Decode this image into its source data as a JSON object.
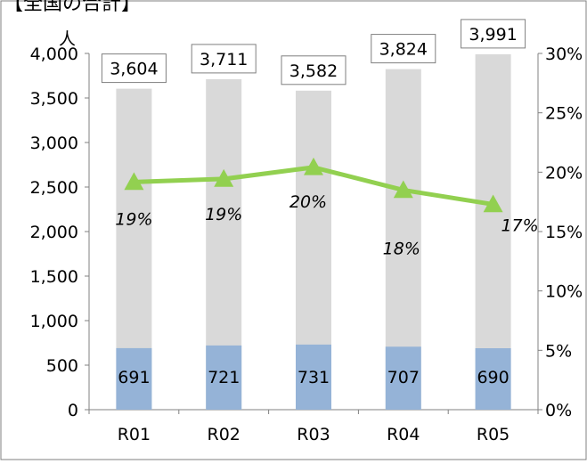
{
  "page_title": "【全国の合計】",
  "chart_data": {
    "type": "bar",
    "categories": [
      "R01",
      "R02",
      "R03",
      "R04",
      "R05"
    ],
    "series": [
      {
        "values": [
          3604,
          3711,
          3582,
          3824,
          3991
        ],
        "color": "#d9d9d9"
      },
      {
        "values": [
          691,
          721,
          731,
          707,
          690
        ],
        "color": "#95b3d7"
      },
      {
        "values": [
          0.19,
          0.19,
          0.2,
          0.18,
          0.17
        ],
        "color": "#92d050",
        "type": "line",
        "axis": "right"
      }
    ],
    "total_labels": [
      "3,604",
      "3,711",
      "3,582",
      "3,824",
      "3,991"
    ],
    "sub_labels": [
      "691",
      "721",
      "731",
      "707",
      "690"
    ],
    "pct_labels": [
      "19%",
      "19%",
      "20%",
      "18%",
      "17%"
    ],
    "pct_values_precise": [
      0.1917,
      0.1943,
      0.2041,
      0.1849,
      0.1729
    ],
    "y_left": {
      "min": 0,
      "max": 4000,
      "step": 500,
      "unit": "人",
      "tick_labels": [
        "0",
        "500",
        "1,000",
        "1,500",
        "2,000",
        "2,500",
        "3,000",
        "3,500",
        "4,000"
      ]
    },
    "y_right": {
      "min": 0,
      "max": 0.3,
      "step": 0.05,
      "tick_labels": [
        "0%",
        "5%",
        "10%",
        "15%",
        "20%",
        "25%",
        "30%"
      ]
    },
    "grid": false,
    "legend": "none"
  }
}
